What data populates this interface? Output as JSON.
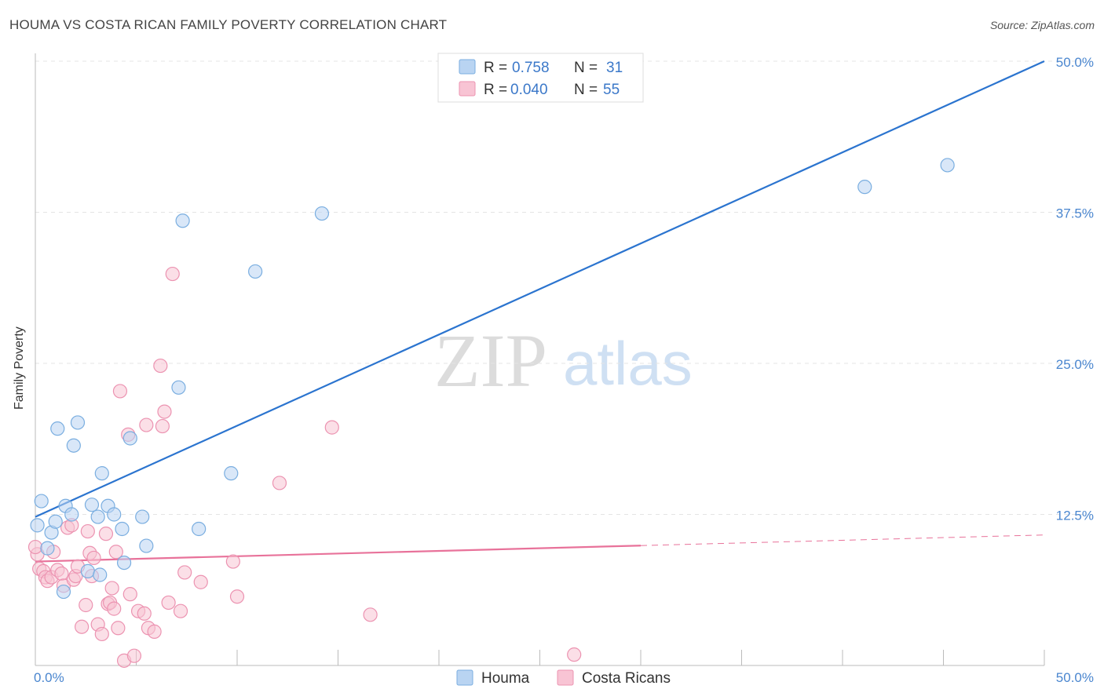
{
  "header": {
    "title": "HOUMA VS COSTA RICAN FAMILY POVERTY CORRELATION CHART",
    "source": "Source: ZipAtlas.com"
  },
  "watermark": {
    "zip": "ZIP",
    "atlas": "atlas"
  },
  "legend_top": {
    "rows": [
      {
        "r_label": "R =",
        "r_value": "0.758",
        "n_label": "N =",
        "n_value": "31"
      },
      {
        "r_label": "R =",
        "r_value": "0.040",
        "n_label": "N =",
        "n_value": "55"
      }
    ]
  },
  "legend_bottom": {
    "items": [
      "Houma",
      "Costa Ricans"
    ]
  },
  "colors": {
    "houma_fill": "#b9d4f2",
    "houma_stroke": "#7aaee0",
    "houma_line": "#2b74cf",
    "cr_fill": "#f8c4d4",
    "cr_stroke": "#ec93b1",
    "cr_line": "#e8729a",
    "value_text": "#3b78c9",
    "axis_text": "#4a86cf"
  },
  "chart_data": {
    "type": "scatter",
    "title": "HOUMA VS COSTA RICAN FAMILY POVERTY CORRELATION CHART",
    "xlabel": "",
    "ylabel": "Family Poverty",
    "xlim": [
      0,
      50
    ],
    "ylim": [
      0,
      50
    ],
    "x_tick_labels": [
      "0.0%",
      "50.0%"
    ],
    "y_ticks": [
      12.5,
      25.0,
      37.5,
      50.0
    ],
    "y_tick_labels": [
      "12.5%",
      "25.0%",
      "37.5%",
      "50.0%"
    ],
    "grid": true,
    "series": [
      {
        "name": "Houma",
        "r": 0.758,
        "n": 31,
        "trend": {
          "x": [
            0,
            50
          ],
          "y": [
            12.3,
            50.0
          ],
          "dashed_from": null
        },
        "points": [
          {
            "x": 0.1,
            "y": 11.6
          },
          {
            "x": 0.3,
            "y": 13.6
          },
          {
            "x": 0.6,
            "y": 9.7
          },
          {
            "x": 0.8,
            "y": 11.0
          },
          {
            "x": 1.0,
            "y": 11.9
          },
          {
            "x": 1.1,
            "y": 19.6
          },
          {
            "x": 1.4,
            "y": 6.1
          },
          {
            "x": 1.5,
            "y": 13.2
          },
          {
            "x": 1.8,
            "y": 12.5
          },
          {
            "x": 1.9,
            "y": 18.2
          },
          {
            "x": 2.1,
            "y": 20.1
          },
          {
            "x": 2.6,
            "y": 7.8
          },
          {
            "x": 2.8,
            "y": 13.3
          },
          {
            "x": 3.1,
            "y": 12.3
          },
          {
            "x": 3.2,
            "y": 7.5
          },
          {
            "x": 3.3,
            "y": 15.9
          },
          {
            "x": 3.6,
            "y": 13.2
          },
          {
            "x": 3.9,
            "y": 12.5
          },
          {
            "x": 4.3,
            "y": 11.3
          },
          {
            "x": 4.4,
            "y": 8.5
          },
          {
            "x": 4.7,
            "y": 18.8
          },
          {
            "x": 5.3,
            "y": 12.3
          },
          {
            "x": 5.5,
            "y": 9.9
          },
          {
            "x": 7.1,
            "y": 23.0
          },
          {
            "x": 7.3,
            "y": 36.8
          },
          {
            "x": 8.1,
            "y": 11.3
          },
          {
            "x": 9.7,
            "y": 15.9
          },
          {
            "x": 10.9,
            "y": 32.6
          },
          {
            "x": 14.2,
            "y": 37.4
          },
          {
            "x": 41.1,
            "y": 39.6
          },
          {
            "x": 45.2,
            "y": 41.4
          }
        ]
      },
      {
        "name": "Costa Ricans",
        "r": 0.04,
        "n": 55,
        "trend": {
          "x": [
            0,
            50
          ],
          "y": [
            8.6,
            10.8
          ],
          "dashed_from": 30
        },
        "points": [
          {
            "x": 0.1,
            "y": 9.2
          },
          {
            "x": 0.2,
            "y": 8.0
          },
          {
            "x": 0.4,
            "y": 7.8
          },
          {
            "x": 0.5,
            "y": 7.3
          },
          {
            "x": 0.6,
            "y": 7.0
          },
          {
            "x": 0.8,
            "y": 7.3
          },
          {
            "x": 0.9,
            "y": 9.4
          },
          {
            "x": 1.1,
            "y": 7.9
          },
          {
            "x": 1.3,
            "y": 7.6
          },
          {
            "x": 1.4,
            "y": 6.6
          },
          {
            "x": 1.6,
            "y": 11.4
          },
          {
            "x": 1.8,
            "y": 11.6
          },
          {
            "x": 1.9,
            "y": 7.1
          },
          {
            "x": 2.0,
            "y": 7.4
          },
          {
            "x": 2.1,
            "y": 8.2
          },
          {
            "x": 2.3,
            "y": 3.2
          },
          {
            "x": 2.5,
            "y": 5.0
          },
          {
            "x": 2.6,
            "y": 11.1
          },
          {
            "x": 2.7,
            "y": 9.3
          },
          {
            "x": 2.8,
            "y": 7.4
          },
          {
            "x": 2.9,
            "y": 8.9
          },
          {
            "x": 3.1,
            "y": 3.4
          },
          {
            "x": 3.3,
            "y": 2.6
          },
          {
            "x": 3.5,
            "y": 10.9
          },
          {
            "x": 3.6,
            "y": 5.1
          },
          {
            "x": 3.7,
            "y": 5.2
          },
          {
            "x": 3.8,
            "y": 6.4
          },
          {
            "x": 3.9,
            "y": 4.7
          },
          {
            "x": 4.0,
            "y": 9.4
          },
          {
            "x": 4.1,
            "y": 3.1
          },
          {
            "x": 4.2,
            "y": 22.7
          },
          {
            "x": 4.4,
            "y": 0.4
          },
          {
            "x": 4.6,
            "y": 19.1
          },
          {
            "x": 4.7,
            "y": 5.9
          },
          {
            "x": 4.9,
            "y": 0.8
          },
          {
            "x": 5.1,
            "y": 4.5
          },
          {
            "x": 5.4,
            "y": 4.3
          },
          {
            "x": 5.5,
            "y": 19.9
          },
          {
            "x": 5.6,
            "y": 3.1
          },
          {
            "x": 5.9,
            "y": 2.8
          },
          {
            "x": 6.2,
            "y": 24.8
          },
          {
            "x": 6.3,
            "y": 19.8
          },
          {
            "x": 6.4,
            "y": 21.0
          },
          {
            "x": 6.6,
            "y": 5.2
          },
          {
            "x": 6.8,
            "y": 32.4
          },
          {
            "x": 7.2,
            "y": 4.5
          },
          {
            "x": 7.4,
            "y": 7.7
          },
          {
            "x": 8.2,
            "y": 6.9
          },
          {
            "x": 9.8,
            "y": 8.6
          },
          {
            "x": 10.0,
            "y": 5.7
          },
          {
            "x": 12.1,
            "y": 15.1
          },
          {
            "x": 14.7,
            "y": 19.7
          },
          {
            "x": 16.6,
            "y": 4.2
          },
          {
            "x": 26.7,
            "y": 0.9
          },
          {
            "x": 0.0,
            "y": 9.8
          }
        ]
      }
    ]
  }
}
